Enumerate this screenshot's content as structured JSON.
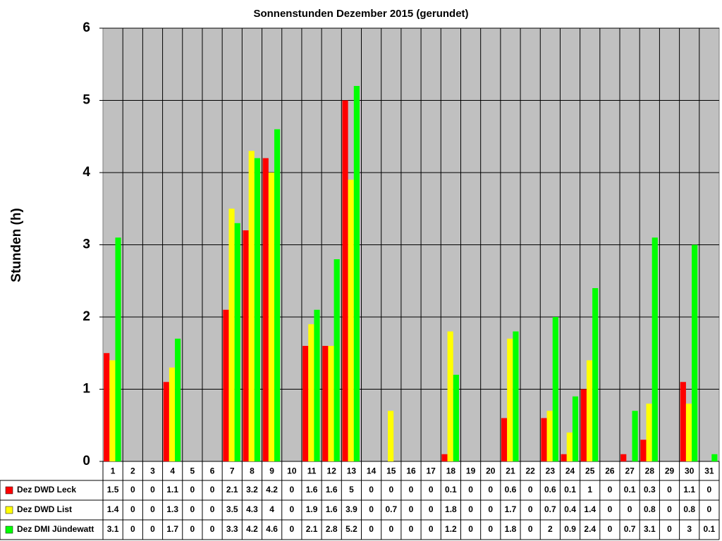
{
  "chart_data": {
    "type": "bar",
    "title": "Sonnenstunden Dezember 2015 (gerundet)",
    "y_label": "Stunden (h)",
    "categories": [
      "1",
      "2",
      "3",
      "4",
      "5",
      "6",
      "7",
      "8",
      "9",
      "10",
      "11",
      "12",
      "13",
      "14",
      "15",
      "16",
      "17",
      "18",
      "19",
      "20",
      "21",
      "22",
      "23",
      "24",
      "25",
      "26",
      "27",
      "28",
      "29",
      "30",
      "31"
    ],
    "series": [
      {
        "name": "Dez DWD Leck",
        "color": "#ff0000",
        "values": [
          1.5,
          0,
          0,
          1.1,
          0,
          0,
          2.1,
          3.2,
          4.2,
          0,
          1.6,
          1.6,
          5,
          0,
          0,
          0,
          0,
          0.1,
          0,
          0,
          0.6,
          0,
          0.6,
          0.1,
          1,
          0,
          0.1,
          0.3,
          0,
          1.1,
          0
        ]
      },
      {
        "name": "Dez DWD List",
        "color": "#ffff00",
        "values": [
          1.4,
          0,
          0,
          1.3,
          0,
          0,
          3.5,
          4.3,
          4,
          0,
          1.9,
          1.6,
          3.9,
          0,
          0.7,
          0,
          0,
          1.8,
          0,
          0,
          1.7,
          0,
          0.7,
          0.4,
          1.4,
          0,
          0,
          0.8,
          0,
          0.8,
          0
        ]
      },
      {
        "name": "Dez DMI Jündewatt",
        "color": "#00ff00",
        "values": [
          3.1,
          0,
          0,
          1.7,
          0,
          0,
          3.3,
          4.2,
          4.6,
          0,
          2.1,
          2.8,
          5.2,
          0,
          0,
          0,
          0,
          1.2,
          0,
          0,
          1.8,
          0,
          2,
          0.9,
          2.4,
          0,
          0.7,
          3.1,
          0,
          3,
          0.1
        ]
      }
    ],
    "ylim": [
      0,
      6
    ],
    "yticks": [
      0,
      1,
      2,
      3,
      4,
      5,
      6
    ],
    "grid": true,
    "plot_background": "#c0c0c0"
  }
}
